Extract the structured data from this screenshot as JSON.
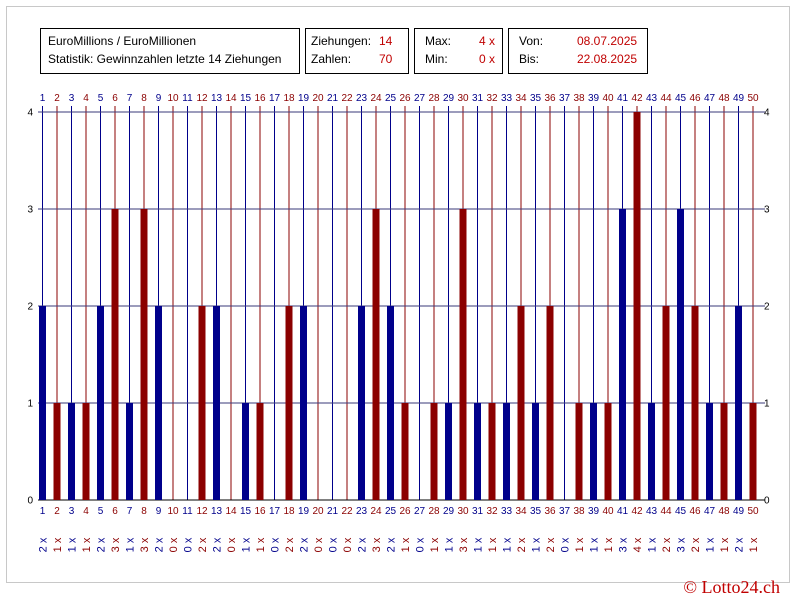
{
  "header": {
    "title_line1": "EuroMillions / EuroMillionen",
    "title_line2": "Statistik: Gewinnzahlen letzte 14 Ziehungen",
    "draws_label": "Ziehungen:",
    "draws_value": "14",
    "numbers_label": "Zahlen:",
    "numbers_value": "70",
    "max_label": "Max:",
    "max_value": "4 x",
    "min_label": "Min:",
    "min_value": "0 x",
    "from_label": "Von:",
    "from_value": "08.07.2025",
    "to_label": "Bis:",
    "to_value": "22.08.2025"
  },
  "footer": {
    "copyright": "© Lotto24.ch"
  },
  "chart_data": {
    "type": "bar",
    "categories": [
      "1",
      "2",
      "3",
      "4",
      "5",
      "6",
      "7",
      "8",
      "9",
      "10",
      "11",
      "12",
      "13",
      "14",
      "15",
      "16",
      "17",
      "18",
      "19",
      "20",
      "21",
      "22",
      "23",
      "24",
      "25",
      "26",
      "27",
      "28",
      "29",
      "30",
      "31",
      "32",
      "33",
      "34",
      "35",
      "36",
      "37",
      "38",
      "39",
      "40",
      "41",
      "42",
      "43",
      "44",
      "45",
      "46",
      "47",
      "48",
      "49",
      "50"
    ],
    "values": [
      2,
      1,
      1,
      1,
      2,
      3,
      1,
      3,
      2,
      0,
      0,
      2,
      2,
      0,
      1,
      1,
      0,
      2,
      2,
      0,
      0,
      0,
      2,
      3,
      2,
      1,
      0,
      1,
      1,
      3,
      1,
      1,
      1,
      2,
      1,
      2,
      0,
      1,
      1,
      1,
      3,
      4,
      1,
      2,
      3,
      2,
      1,
      1,
      2,
      1
    ],
    "count_suffix": " x",
    "yticks": [
      "0",
      "1",
      "2",
      "3",
      "4"
    ],
    "ylim": [
      0,
      4
    ],
    "grid": true,
    "colors": {
      "odd": "#00008b",
      "even": "#8b0000",
      "grid_odd": "#00008b",
      "grid_even": "#8b0000"
    }
  }
}
